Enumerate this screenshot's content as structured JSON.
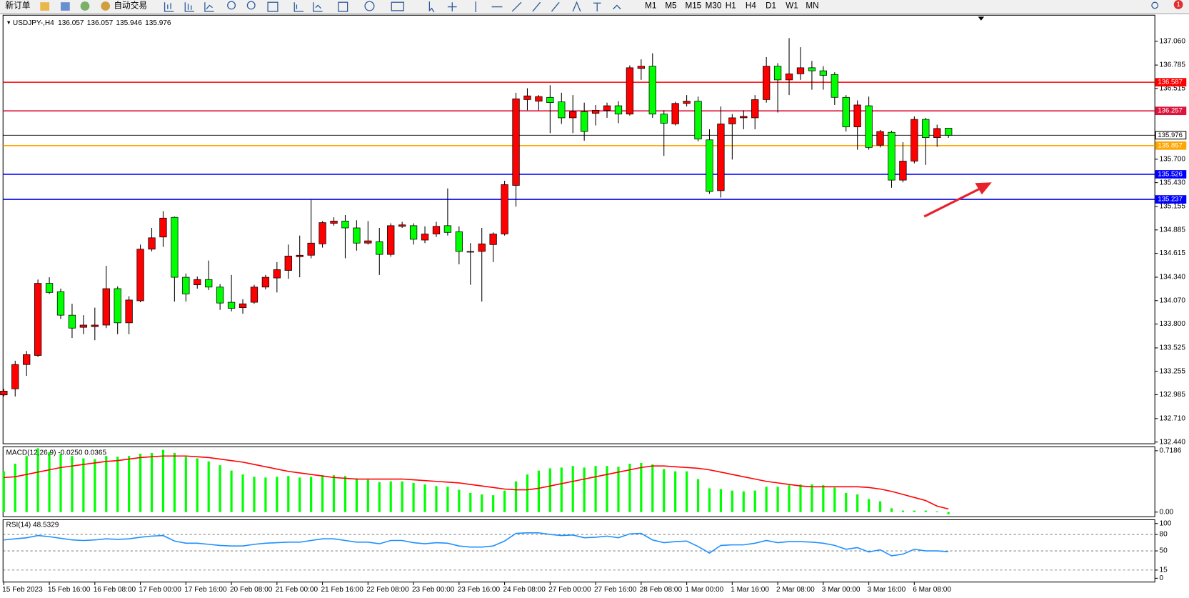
{
  "toolbar": {
    "new_order": "新订单",
    "auto_trading": "自动交易",
    "timeframes": [
      "M1",
      "M5",
      "M15",
      "M30",
      "H1",
      "H4",
      "D1",
      "W1",
      "MN"
    ],
    "notifications": 1
  },
  "chart_data": {
    "type": "candlestick",
    "symbol": "USDJPY-,H4",
    "categories": [
      "15 Feb 2023",
      null,
      null,
      null,
      "15 Feb 16:00",
      null,
      null,
      null,
      "16 Feb 08:00",
      null,
      null,
      null,
      "17 Feb 00:00",
      null,
      null,
      null,
      "17 Feb 16:00",
      null,
      null,
      null,
      "20 Feb 08:00",
      null,
      null,
      null,
      "21 Feb 00:00",
      null,
      null,
      null,
      "21 Feb 16:00",
      null,
      null,
      null,
      "22 Feb 08:00",
      null,
      null,
      null,
      "23 Feb 00:00",
      null,
      null,
      null,
      "23 Feb 16:00",
      null,
      null,
      null,
      "24 Feb 08:00",
      null,
      null,
      null,
      "27 Feb 00:00",
      null,
      null,
      null,
      "27 Feb 16:00",
      null,
      null,
      null,
      "28 Feb 08:00",
      null,
      null,
      null,
      "1 Mar 00:00",
      null,
      null,
      null,
      "1 Mar 16:00",
      null,
      null,
      null,
      "2 Mar 08:00",
      null,
      null,
      null,
      "3 Mar 00:00",
      null,
      null,
      null,
      "3 Mar 16:00",
      null,
      null,
      null,
      "6 Mar 08:00",
      null,
      null,
      null
    ],
    "open": [
      132.983,
      133.053,
      133.333,
      133.438,
      134.269,
      134.173,
      133.902,
      133.762,
      133.77,
      133.788,
      134.208,
      133.814,
      134.068,
      134.663,
      134.803,
      135.03,
      134.339,
      134.252,
      134.313,
      134.226,
      134.051,
      133.989,
      134.051,
      134.226,
      134.331,
      134.418,
      134.576,
      134.593,
      134.724,
      134.961,
      134.987,
      134.908,
      134.733,
      134.75,
      134.602,
      134.926,
      134.934,
      134.768,
      134.838,
      134.934,
      134.864,
      134.628,
      134.637,
      134.716,
      134.838,
      135.398,
      136.387,
      136.369,
      136.413,
      136.361,
      136.177,
      136.247,
      136.229,
      136.264,
      136.316,
      136.22,
      136.746,
      136.772,
      136.22,
      136.107,
      136.343,
      136.369,
      135.923,
      135.337,
      136.107,
      136.177,
      136.177,
      136.387,
      136.772,
      136.614,
      136.684,
      136.754,
      136.719,
      136.676,
      136.413,
      136.072,
      136.316,
      135.861,
      136.01,
      135.459,
      135.678,
      136.159,
      135.949,
      136.057
    ],
    "high": [
      133.053,
      133.377,
      133.49,
      134.313,
      134.339,
      134.208,
      134.033,
      133.902,
      133.989,
      134.471,
      134.234,
      134.121,
      134.716,
      134.908,
      135.101,
      135.039,
      134.383,
      134.348,
      134.532,
      134.261,
      134.366,
      134.086,
      134.252,
      134.366,
      134.514,
      134.716,
      134.82,
      135.232,
      134.987,
      135.03,
      135.057,
      134.996,
      134.987,
      134.908,
      134.961,
      134.978,
      134.961,
      134.926,
      134.978,
      135.363,
      134.926,
      134.733,
      134.908,
      134.856,
      135.451,
      136.466,
      136.518,
      136.439,
      136.553,
      136.466,
      136.439,
      136.352,
      136.325,
      136.352,
      136.369,
      136.781,
      136.851,
      136.921,
      136.264,
      136.361,
      136.439,
      136.422,
      136.045,
      136.308,
      136.22,
      136.264,
      136.439,
      136.877,
      136.807,
      137.096,
      136.991,
      136.833,
      136.772,
      136.702,
      136.439,
      136.378,
      136.422,
      136.037,
      136.028,
      135.896,
      136.194,
      136.177,
      136.098,
      136.057
    ],
    "low": [
      132.965,
      132.965,
      133.202,
      133.42,
      134.147,
      133.858,
      133.639,
      133.683,
      133.613,
      133.753,
      133.683,
      133.683,
      134.051,
      134.637,
      134.689,
      134.059,
      134.059,
      134.208,
      134.191,
      133.963,
      133.946,
      133.919,
      134.033,
      134.199,
      134.164,
      134.322,
      134.339,
      134.558,
      134.681,
      134.934,
      134.558,
      134.646,
      134.716,
      134.366,
      134.576,
      134.908,
      134.716,
      134.733,
      134.803,
      134.82,
      134.488,
      134.252,
      134.059,
      134.514,
      134.82,
      135.153,
      136.264,
      136.264,
      136.001,
      136.107,
      136.001,
      135.914,
      136.089,
      136.177,
      136.115,
      136.203,
      136.614,
      136.177,
      135.739,
      136.089,
      136.308,
      135.906,
      135.302,
      135.258,
      135.696,
      136.045,
      136.045,
      136.352,
      136.238,
      136.439,
      136.614,
      136.501,
      136.501,
      136.325,
      136.019,
      135.809,
      135.809,
      135.836,
      135.371,
      135.433,
      135.652,
      135.634,
      135.844,
      135.946
    ],
    "close": [
      133.027,
      133.333,
      133.447,
      134.269,
      134.164,
      133.902,
      133.753,
      133.788,
      133.788,
      134.208,
      133.814,
      134.077,
      134.663,
      134.794,
      135.021,
      134.339,
      134.147,
      134.313,
      134.226,
      134.042,
      133.981,
      134.033,
      134.226,
      134.339,
      134.427,
      134.584,
      134.593,
      134.733,
      134.969,
      134.987,
      134.908,
      134.733,
      134.759,
      134.602,
      134.934,
      134.943,
      134.777,
      134.838,
      134.926,
      134.856,
      134.637,
      134.637,
      134.724,
      134.838,
      135.407,
      136.396,
      136.43,
      136.422,
      136.352,
      136.177,
      136.247,
      136.019,
      136.264,
      136.316,
      136.22,
      136.754,
      136.772,
      136.22,
      136.115,
      136.343,
      136.369,
      135.932,
      135.328,
      136.107,
      136.177,
      136.194,
      136.387,
      136.772,
      136.614,
      136.684,
      136.754,
      136.719,
      136.667,
      136.413,
      136.072,
      136.325,
      135.836,
      136.019,
      135.459,
      135.678,
      136.159,
      135.949,
      136.054,
      135.976
    ],
    "bull_color": "#ff0000",
    "bear_color": "#00ff00",
    "grid": false,
    "ylim": [
      132.42,
      137.36
    ],
    "yticks": [
      {
        "value": 137.06,
        "label": "137.060"
      },
      136.785,
      136.515,
      136.245,
      {
        "value": 135.97,
        "label": "135.970"
      },
      {
        "value": 135.7,
        "label": "135.700"
      },
      {
        "value": 135.43,
        "label": "135.430"
      },
      135.155,
      134.885,
      134.615,
      {
        "value": 134.34,
        "label": "134.340"
      },
      {
        "value": 134.07,
        "label": "134.070"
      },
      {
        "value": 133.8,
        "label": "133.800"
      },
      133.525,
      133.255,
      132.985,
      {
        "value": 132.71,
        "label": "132.710"
      },
      {
        "value": 132.44,
        "label": "132.440"
      }
    ],
    "levels": [
      {
        "value": 136.587,
        "color": "#ff0000"
      },
      {
        "value": 136.257,
        "color": "#dc143c"
      },
      {
        "value": 135.857,
        "color": "#ffa500"
      },
      {
        "value": 135.526,
        "color": "#0000ff"
      },
      {
        "value": 135.237,
        "color": "#0000ff"
      }
    ],
    "macd": {
      "title": "MACD(12,26,9) -0.0250 0.0365",
      "histogram_color": "#00ff00",
      "signal_color": "#ff0000",
      "histogram": [
        0.477,
        0.567,
        0.657,
        0.747,
        0.702,
        0.684,
        0.657,
        0.63,
        0.621,
        0.657,
        0.648,
        0.657,
        0.684,
        0.693,
        0.729,
        0.693,
        0.648,
        0.63,
        0.594,
        0.549,
        0.486,
        0.441,
        0.414,
        0.405,
        0.414,
        0.423,
        0.405,
        0.414,
        0.432,
        0.432,
        0.423,
        0.396,
        0.378,
        0.351,
        0.36,
        0.36,
        0.342,
        0.324,
        0.306,
        0.297,
        0.261,
        0.225,
        0.207,
        0.198,
        0.252,
        0.36,
        0.441,
        0.486,
        0.513,
        0.522,
        0.54,
        0.522,
        0.54,
        0.54,
        0.531,
        0.567,
        0.576,
        0.558,
        0.504,
        0.477,
        0.477,
        0.387,
        0.279,
        0.27,
        0.252,
        0.243,
        0.252,
        0.297,
        0.297,
        0.315,
        0.324,
        0.324,
        0.315,
        0.288,
        0.225,
        0.207,
        0.153,
        0.126,
        0.045,
        0.018,
        0.018,
        0.018,
        0.009,
        -0.025
      ],
      "signal": [
        0.405,
        0.414,
        0.441,
        0.468,
        0.495,
        0.522,
        0.54,
        0.558,
        0.576,
        0.594,
        0.603,
        0.621,
        0.639,
        0.648,
        0.657,
        0.657,
        0.657,
        0.648,
        0.639,
        0.621,
        0.603,
        0.585,
        0.558,
        0.531,
        0.504,
        0.477,
        0.459,
        0.441,
        0.423,
        0.405,
        0.396,
        0.387,
        0.387,
        0.387,
        0.387,
        0.387,
        0.378,
        0.369,
        0.36,
        0.351,
        0.342,
        0.324,
        0.306,
        0.288,
        0.27,
        0.261,
        0.261,
        0.279,
        0.306,
        0.333,
        0.36,
        0.387,
        0.414,
        0.441,
        0.468,
        0.495,
        0.522,
        0.54,
        0.54,
        0.531,
        0.522,
        0.513,
        0.495,
        0.468,
        0.441,
        0.414,
        0.387,
        0.36,
        0.342,
        0.324,
        0.306,
        0.297,
        0.297,
        0.297,
        0.297,
        0.297,
        0.288,
        0.27,
        0.243,
        0.207,
        0.171,
        0.135,
        0.07,
        0.0365
      ],
      "ylim": [
        -0.045,
        0.756
      ],
      "yticks": [
        0.7186,
        {
          "value": 0,
          "label": "0.00"
        }
      ]
    },
    "rsi": {
      "title": "RSI(14) 48.5329",
      "color": "#1e90ff",
      "values": [
        70,
        72,
        74,
        78,
        76,
        73,
        70,
        69,
        70,
        72,
        71,
        72,
        75,
        77,
        78,
        68,
        64,
        64,
        62,
        60,
        59,
        59,
        62,
        64,
        65,
        66,
        66,
        69,
        72,
        72,
        69,
        66,
        66,
        63,
        69,
        69,
        65,
        63,
        65,
        64,
        59,
        57,
        57,
        59,
        68,
        82,
        83,
        83,
        80,
        78,
        79,
        74,
        75,
        77,
        74,
        81,
        82,
        70,
        65,
        67,
        68,
        58,
        46,
        60,
        61,
        61,
        64,
        69,
        65,
        67,
        67,
        66,
        64,
        60,
        53,
        56,
        48,
        52,
        41,
        44,
        53,
        50,
        50,
        48.5329
      ],
      "ylim": [
        -6.9,
        106.9
      ],
      "yticks": [
        100,
        80,
        50,
        15,
        0
      ],
      "levels": [
        80,
        50,
        15
      ]
    }
  }
}
